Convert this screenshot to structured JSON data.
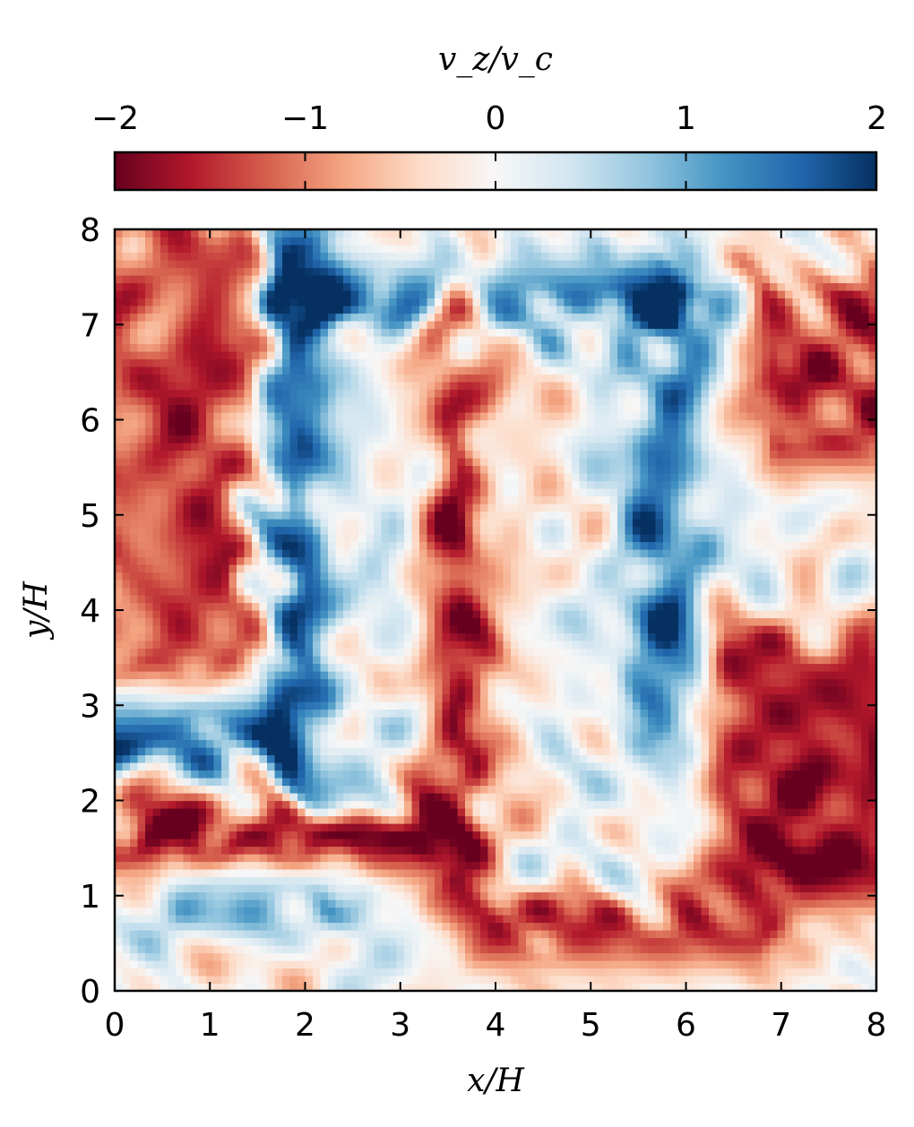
{
  "chart_data": {
    "type": "heatmap",
    "title": "",
    "xlabel": "x/H",
    "ylabel": "y/H",
    "xlim": [
      0,
      8
    ],
    "ylim": [
      0,
      8
    ],
    "xticks": [
      "0",
      "1",
      "2",
      "3",
      "4",
      "5",
      "6",
      "7",
      "8"
    ],
    "yticks": [
      "0",
      "1",
      "2",
      "3",
      "4",
      "5",
      "6",
      "7",
      "8"
    ],
    "colorbar": {
      "label": "v_z/v_c",
      "placement": "top",
      "range": [
        -2,
        2
      ],
      "ticks": [
        "−2",
        "−1",
        "0",
        "1",
        "2"
      ],
      "colormap": "RdBu",
      "colors": [
        "#67001f",
        "#b2182b",
        "#d6604d",
        "#f4a582",
        "#fddbc7",
        "#f7f7f7",
        "#d1e5f0",
        "#92c5de",
        "#4393c3",
        "#2166ac",
        "#053061"
      ]
    },
    "features": [
      {
        "name": "strong positive band (blue)",
        "x": 1.9,
        "y_range": [
          2.2,
          7.8
        ],
        "sign": "+",
        "magnitude": 1.6
      },
      {
        "name": "strong positive band (blue)",
        "x_range": [
          2.0,
          6.0
        ],
        "y": 7.3,
        "sign": "+",
        "magnitude": 1.3
      },
      {
        "name": "positive region (blue)",
        "x": 5.8,
        "y_range": [
          2.8,
          7.2
        ],
        "sign": "+",
        "magnitude": 1.4
      },
      {
        "name": "positive patch (blue)",
        "x_range": [
          0.0,
          1.5
        ],
        "y": 2.7,
        "sign": "+",
        "magnitude": 1.5
      },
      {
        "name": "positive patch (blue)",
        "x_range": [
          0.8,
          2.2
        ],
        "y": 1.0,
        "sign": "+",
        "magnitude": 1.0
      },
      {
        "name": "strong negative band (red)",
        "x_range": [
          0.0,
          3.0
        ],
        "y": 1.6,
        "sign": "-",
        "magnitude": 1.9
      },
      {
        "name": "negative band (red)",
        "x": 3.6,
        "y_range": [
          1.2,
          7.2
        ],
        "sign": "-",
        "magnitude": 1.6
      },
      {
        "name": "negative region (red)",
        "x_range": [
          0.0,
          1.2
        ],
        "y_range": [
          3.5,
          7.8
        ],
        "sign": "-",
        "magnitude": 1.3
      },
      {
        "name": "negative region (red)",
        "x_range": [
          6.6,
          8.0
        ],
        "y_range": [
          1.2,
          3.4
        ],
        "sign": "-",
        "magnitude": 1.7
      },
      {
        "name": "negative region (red)",
        "x_range": [
          4.0,
          6.8
        ],
        "y": 0.6,
        "sign": "-",
        "magnitude": 1.5
      },
      {
        "name": "negative region (red)",
        "x_range": [
          7.0,
          8.0
        ],
        "y_range": [
          5.8,
          7.2
        ],
        "sign": "-",
        "magnitude": 1.5
      }
    ]
  }
}
